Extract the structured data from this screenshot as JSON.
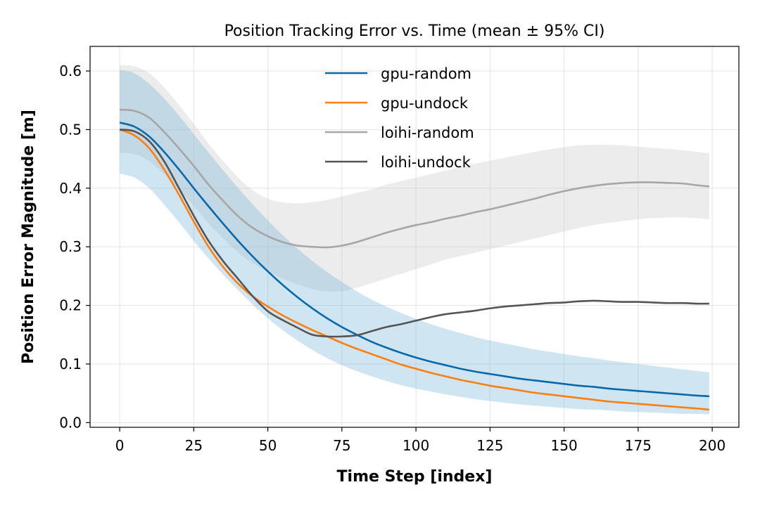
{
  "chart_data": {
    "type": "line",
    "title": "Position Tracking Error vs. Time (mean ± 95% CI)",
    "xlabel": "Time Step [index]",
    "ylabel": "Position Error Magnitude [m]",
    "xlim": [
      -10,
      209
    ],
    "ylim": [
      -0.008,
      0.642
    ],
    "xticks": [
      0,
      25,
      50,
      75,
      100,
      125,
      150,
      175,
      200
    ],
    "xtick_labels": [
      "0",
      "25",
      "50",
      "75",
      "100",
      "125",
      "150",
      "175",
      "200"
    ],
    "yticks": [
      0.0,
      0.1,
      0.2,
      0.3,
      0.4,
      0.5,
      0.6
    ],
    "ytick_labels": [
      "0.0",
      "0.1",
      "0.2",
      "0.3",
      "0.4",
      "0.5",
      "0.6"
    ],
    "grid": true,
    "legend_position": "top-center",
    "x": [
      0,
      5,
      10,
      15,
      20,
      25,
      30,
      35,
      40,
      45,
      50,
      55,
      60,
      65,
      70,
      75,
      80,
      85,
      90,
      95,
      100,
      105,
      110,
      115,
      120,
      125,
      130,
      135,
      140,
      145,
      150,
      155,
      160,
      165,
      170,
      175,
      180,
      185,
      190,
      195,
      199
    ],
    "series": [
      {
        "name": "gpu-random",
        "color": "#0868ac",
        "values": [
          0.512,
          0.505,
          0.488,
          0.462,
          0.432,
          0.4,
          0.369,
          0.339,
          0.31,
          0.283,
          0.258,
          0.235,
          0.214,
          0.195,
          0.178,
          0.163,
          0.15,
          0.138,
          0.128,
          0.119,
          0.111,
          0.104,
          0.098,
          0.092,
          0.087,
          0.083,
          0.079,
          0.075,
          0.072,
          0.069,
          0.066,
          0.063,
          0.061,
          0.058,
          0.056,
          0.054,
          0.052,
          0.05,
          0.048,
          0.046,
          0.045
        ],
        "ci_lower": [
          0.425,
          0.418,
          0.4,
          0.372,
          0.342,
          0.31,
          0.28,
          0.252,
          0.226,
          0.201,
          0.178,
          0.158,
          0.14,
          0.124,
          0.11,
          0.098,
          0.088,
          0.079,
          0.071,
          0.064,
          0.058,
          0.053,
          0.048,
          0.044,
          0.04,
          0.037,
          0.034,
          0.031,
          0.029,
          0.027,
          0.025,
          0.023,
          0.022,
          0.021,
          0.019,
          0.018,
          0.017,
          0.016,
          0.015,
          0.015,
          0.014
        ],
        "ci_upper": [
          0.602,
          0.596,
          0.578,
          0.553,
          0.524,
          0.492,
          0.461,
          0.43,
          0.4,
          0.372,
          0.345,
          0.32,
          0.297,
          0.276,
          0.257,
          0.24,
          0.224,
          0.21,
          0.198,
          0.187,
          0.177,
          0.168,
          0.16,
          0.153,
          0.146,
          0.14,
          0.135,
          0.13,
          0.125,
          0.121,
          0.117,
          0.113,
          0.11,
          0.106,
          0.103,
          0.1,
          0.097,
          0.094,
          0.091,
          0.088,
          0.086
        ]
      },
      {
        "name": "gpu-undock",
        "color": "#ff7f0e",
        "values": [
          0.5,
          0.49,
          0.468,
          0.432,
          0.389,
          0.343,
          0.3,
          0.265,
          0.237,
          0.215,
          0.198,
          0.183,
          0.17,
          0.158,
          0.147,
          0.136,
          0.126,
          0.117,
          0.108,
          0.099,
          0.092,
          0.085,
          0.079,
          0.073,
          0.068,
          0.063,
          0.059,
          0.055,
          0.051,
          0.048,
          0.045,
          0.042,
          0.039,
          0.036,
          0.034,
          0.032,
          0.03,
          0.028,
          0.026,
          0.024,
          0.022
        ]
      },
      {
        "name": "loihi-random",
        "color": "#a6a6a6",
        "values": [
          0.534,
          0.532,
          0.52,
          0.496,
          0.468,
          0.438,
          0.406,
          0.378,
          0.352,
          0.332,
          0.318,
          0.308,
          0.302,
          0.3,
          0.299,
          0.302,
          0.308,
          0.316,
          0.324,
          0.331,
          0.337,
          0.342,
          0.348,
          0.353,
          0.359,
          0.364,
          0.37,
          0.376,
          0.382,
          0.389,
          0.395,
          0.4,
          0.404,
          0.407,
          0.409,
          0.41,
          0.41,
          0.409,
          0.408,
          0.405,
          0.403
        ],
        "ci_lower": [
          0.46,
          0.458,
          0.446,
          0.424,
          0.398,
          0.37,
          0.34,
          0.314,
          0.29,
          0.272,
          0.258,
          0.246,
          0.236,
          0.228,
          0.224,
          0.224,
          0.23,
          0.238,
          0.246,
          0.254,
          0.262,
          0.27,
          0.278,
          0.284,
          0.29,
          0.296,
          0.302,
          0.308,
          0.314,
          0.32,
          0.326,
          0.332,
          0.337,
          0.341,
          0.344,
          0.347,
          0.349,
          0.35,
          0.35,
          0.349,
          0.347
        ],
        "ci_upper": [
          0.61,
          0.608,
          0.596,
          0.572,
          0.542,
          0.51,
          0.476,
          0.446,
          0.418,
          0.396,
          0.382,
          0.376,
          0.374,
          0.376,
          0.38,
          0.386,
          0.392,
          0.398,
          0.406,
          0.412,
          0.418,
          0.424,
          0.43,
          0.436,
          0.442,
          0.447,
          0.452,
          0.457,
          0.462,
          0.466,
          0.47,
          0.473,
          0.474,
          0.474,
          0.473,
          0.471,
          0.469,
          0.467,
          0.465,
          0.462,
          0.46
        ]
      },
      {
        "name": "loihi-undock",
        "color": "#555555",
        "values": [
          0.5,
          0.497,
          0.48,
          0.446,
          0.4,
          0.353,
          0.31,
          0.275,
          0.245,
          0.215,
          0.19,
          0.175,
          0.162,
          0.15,
          0.147,
          0.147,
          0.149,
          0.156,
          0.163,
          0.168,
          0.174,
          0.18,
          0.185,
          0.188,
          0.191,
          0.195,
          0.198,
          0.2,
          0.202,
          0.204,
          0.205,
          0.207,
          0.208,
          0.207,
          0.206,
          0.206,
          0.205,
          0.204,
          0.204,
          0.203,
          0.203
        ]
      }
    ]
  }
}
